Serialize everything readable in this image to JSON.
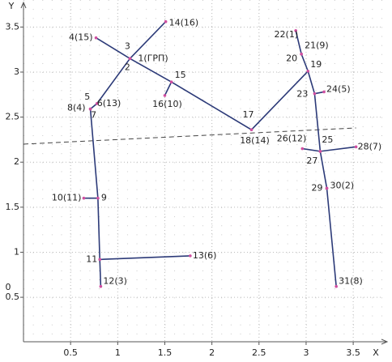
{
  "chart_data": {
    "type": "network",
    "xlabel": "X",
    "ylabel": "Y",
    "origin_label": "0",
    "xlim": [
      0,
      3.8
    ],
    "ylim": [
      0,
      3.8
    ],
    "xticks": [
      0.5,
      1,
      1.5,
      2,
      2.5,
      3,
      3.5
    ],
    "yticks": [
      0.5,
      1,
      1.5,
      2,
      2.5,
      3,
      3.5
    ],
    "grid": true,
    "line_color": "#2c3a78",
    "point_color": "#d04fa0",
    "dashed_color": "#444444",
    "series": [
      {
        "x": [
          0.77,
          1.13,
          1.57,
          2.42,
          3.02,
          2.95,
          2.89
        ],
        "y": [
          3.38,
          3.15,
          2.89,
          2.36,
          3.01,
          3.2,
          3.46
        ]
      },
      {
        "x": [
          1.13,
          1.51
        ],
        "y": [
          3.15,
          3.56
        ]
      },
      {
        "x": [
          1.57,
          1.5
        ],
        "y": [
          2.89,
          2.74
        ]
      },
      {
        "x": [
          1.13,
          0.78,
          0.71,
          0.79,
          0.81,
          0.82
        ],
        "y": [
          3.15,
          2.65,
          2.59,
          1.6,
          0.92,
          0.62
        ]
      },
      {
        "x": [
          0.79,
          0.64
        ],
        "y": [
          1.6,
          1.6
        ]
      },
      {
        "x": [
          0.81,
          1.77
        ],
        "y": [
          0.92,
          0.96
        ]
      },
      {
        "x": [
          3.02,
          3.09,
          3.15,
          3.22,
          3.32
        ],
        "y": [
          3.01,
          2.76,
          2.12,
          1.71,
          0.62
        ]
      },
      {
        "x": [
          3.09,
          3.19
        ],
        "y": [
          2.76,
          2.78
        ]
      },
      {
        "x": [
          2.96,
          3.15,
          3.53
        ],
        "y": [
          2.15,
          2.12,
          2.17
        ]
      }
    ],
    "dashed_line": {
      "x": [
        0,
        3.53
      ],
      "y": [
        2.2,
        2.38
      ]
    },
    "points": [
      {
        "label": "1(ГРП)",
        "x": 1.13,
        "y": 3.15
      },
      {
        "label": "3",
        "x": 1.13,
        "y": 3.15
      },
      {
        "label": "2",
        "x": 1.13,
        "y": 3.15
      },
      {
        "label": "4(15)",
        "x": 0.77,
        "y": 3.38
      },
      {
        "label": "14(16)",
        "x": 1.51,
        "y": 3.56
      },
      {
        "label": "15",
        "x": 1.57,
        "y": 2.89
      },
      {
        "label": "16(10)",
        "x": 1.5,
        "y": 2.74
      },
      {
        "label": "17",
        "x": 2.42,
        "y": 2.36
      },
      {
        "label": "18(14)",
        "x": 2.42,
        "y": 2.36
      },
      {
        "label": "22(1)",
        "x": 2.89,
        "y": 3.46
      },
      {
        "label": "21(9)",
        "x": 2.95,
        "y": 3.2
      },
      {
        "label": "20",
        "x": 2.95,
        "y": 3.2
      },
      {
        "label": "19",
        "x": 3.02,
        "y": 3.01
      },
      {
        "label": "23",
        "x": 3.09,
        "y": 2.76
      },
      {
        "label": "24(5)",
        "x": 3.19,
        "y": 2.78
      },
      {
        "label": "25",
        "x": 3.15,
        "y": 2.12
      },
      {
        "label": "27",
        "x": 3.15,
        "y": 2.12
      },
      {
        "label": "26(12)",
        "x": 2.96,
        "y": 2.15
      },
      {
        "label": "28(7)",
        "x": 3.53,
        "y": 2.17
      },
      {
        "label": "29",
        "x": 3.22,
        "y": 1.71
      },
      {
        "label": "30(2)",
        "x": 3.22,
        "y": 1.71
      },
      {
        "label": "31(8)",
        "x": 3.32,
        "y": 0.62
      },
      {
        "label": "5",
        "x": 0.78,
        "y": 2.65
      },
      {
        "label": "6(13)",
        "x": 0.78,
        "y": 2.65
      },
      {
        "label": "8(4)",
        "x": 0.71,
        "y": 2.59
      },
      {
        "label": "7",
        "x": 0.71,
        "y": 2.59
      },
      {
        "label": "9",
        "x": 0.79,
        "y": 1.6
      },
      {
        "label": "10(11)",
        "x": 0.64,
        "y": 1.6
      },
      {
        "label": "11",
        "x": 0.81,
        "y": 0.92
      },
      {
        "label": "13(6)",
        "x": 1.77,
        "y": 0.96
      },
      {
        "label": "12(3)",
        "x": 0.82,
        "y": 0.62
      }
    ]
  }
}
